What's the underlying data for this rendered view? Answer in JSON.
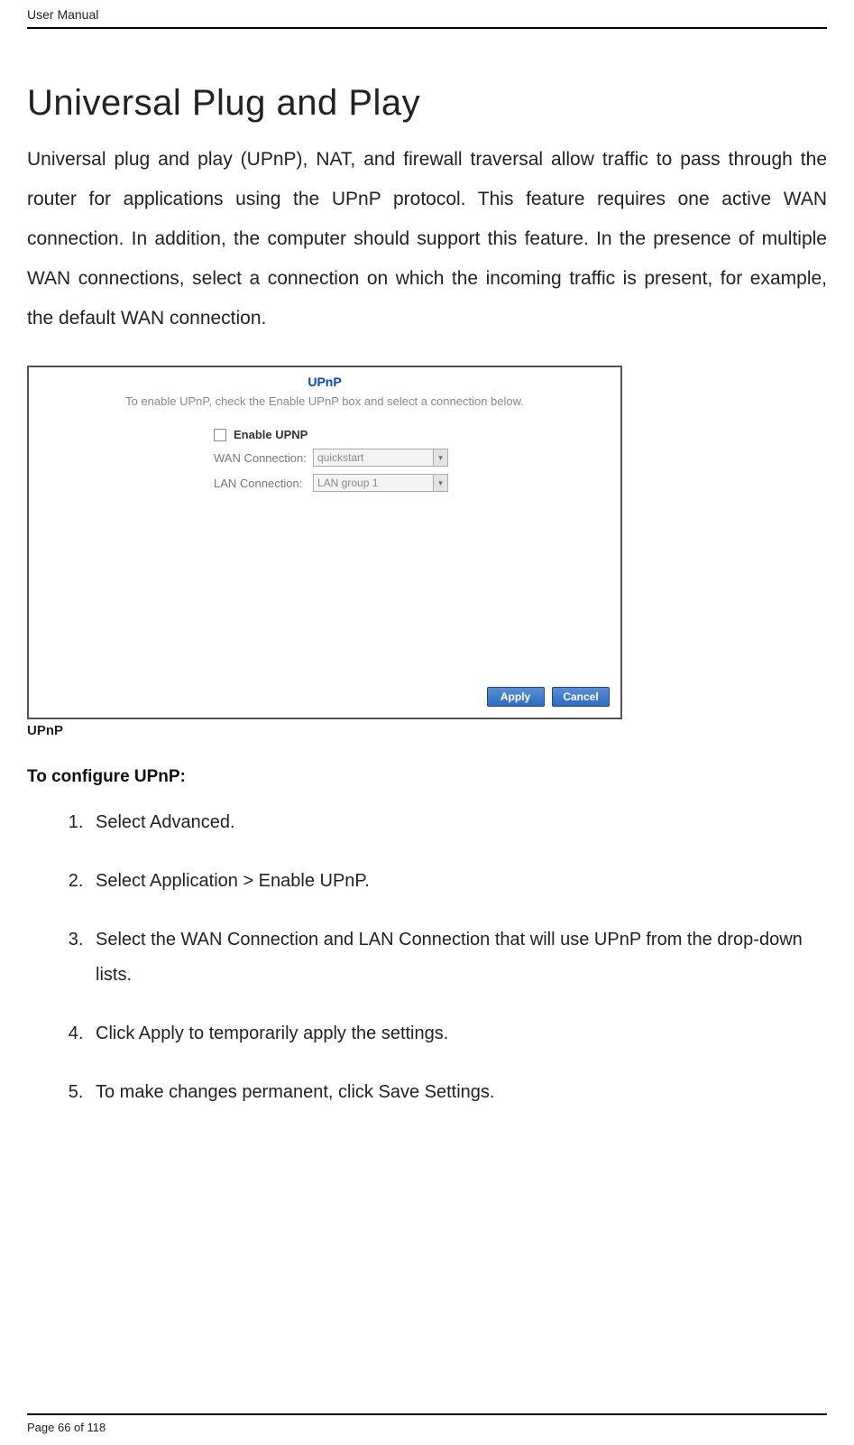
{
  "header": {
    "title": "User Manual"
  },
  "main": {
    "title": "Universal Plug and Play",
    "intro": "Universal plug and play (UPnP), NAT, and firewall traversal allow traffic to pass through the router for applications using the UPnP protocol. This feature requires one active WAN connection. In addition, the computer should support this feature. In the presence of multiple WAN connections, select a connection on which the incoming traffic is present, for example, the default WAN connection."
  },
  "screenshot": {
    "title": "UPnP",
    "subtitle": "To enable UPnP, check the Enable UPnP box and select a connection below.",
    "enable_label": "Enable UPNP",
    "wan_label": "WAN Connection:",
    "wan_value": "quickstart",
    "lan_label": "LAN Connection:",
    "lan_value": "LAN group 1",
    "apply_btn": "Apply",
    "cancel_btn": "Cancel",
    "caption": "UPnP",
    "colors": {
      "title_color": "#0047c2",
      "subtitle_color": "#888888",
      "border_color": "#555555",
      "btn_bg_top": "#5a8fd6",
      "btn_bg_bottom": "#2e6bc0",
      "btn_border": "#1a4a8a"
    }
  },
  "config": {
    "heading": "To configure UPnP:",
    "steps": [
      {
        "pre": "Select ",
        "bold": "Advanced",
        "post": "."
      },
      {
        "pre": "Select ",
        "bold": "Application > Enable UPnP",
        "post": "."
      },
      {
        "pre": "Select the ",
        "bold": "WAN Connection",
        "mid": " and ",
        "bold2": "LAN Connection",
        "post": " that will use UPnP from the drop-down lists."
      },
      {
        "pre": "Click ",
        "bold": "Apply",
        "post": " to temporarily apply the settings."
      },
      {
        "pre": "To make changes permanent, click ",
        "bold": "Save Settings",
        "post": "."
      }
    ]
  },
  "footer": {
    "text": "Page 66 of 118"
  }
}
